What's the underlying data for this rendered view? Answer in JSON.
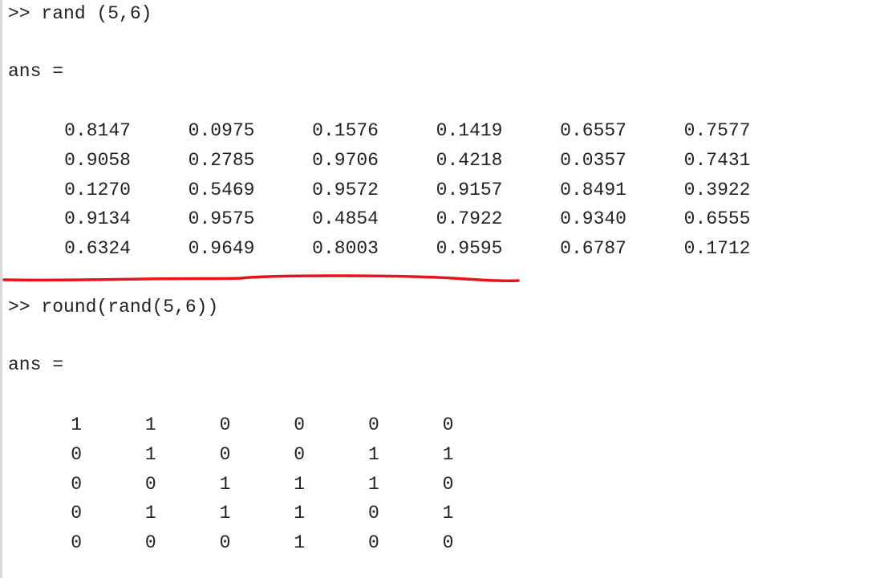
{
  "command1": {
    "prompt": ">>",
    "text": "rand (5,6)"
  },
  "result1": {
    "label": "ans =",
    "rows": [
      [
        "0.8147",
        "0.0975",
        "0.1576",
        "0.1419",
        "0.6557",
        "0.7577"
      ],
      [
        "0.9058",
        "0.2785",
        "0.9706",
        "0.4218",
        "0.0357",
        "0.7431"
      ],
      [
        "0.1270",
        "0.5469",
        "0.9572",
        "0.9157",
        "0.8491",
        "0.3922"
      ],
      [
        "0.9134",
        "0.9575",
        "0.4854",
        "0.7922",
        "0.9340",
        "0.6555"
      ],
      [
        "0.6324",
        "0.9649",
        "0.8003",
        "0.9595",
        "0.6787",
        "0.1712"
      ]
    ]
  },
  "separator": {
    "color": "#e8141b"
  },
  "command2": {
    "prompt": ">>",
    "text": "round(rand(5,6))"
  },
  "result2": {
    "label": "ans =",
    "rows": [
      [
        "1",
        "1",
        "0",
        "0",
        "0",
        "0"
      ],
      [
        "0",
        "1",
        "0",
        "0",
        "1",
        "1"
      ],
      [
        "0",
        "0",
        "1",
        "1",
        "1",
        "0"
      ],
      [
        "0",
        "1",
        "1",
        "1",
        "0",
        "1"
      ],
      [
        "0",
        "0",
        "0",
        "1",
        "0",
        "0"
      ]
    ]
  }
}
